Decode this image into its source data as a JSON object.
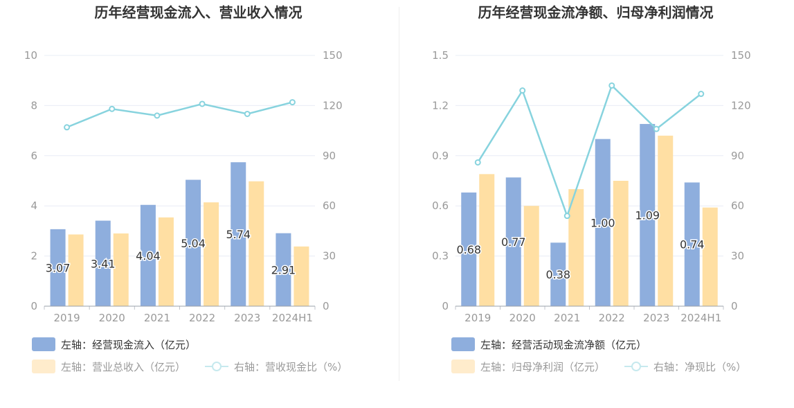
{
  "colors": {
    "bar_primary": "#8eaedd",
    "bar_secondary": "#ffdfa3",
    "line": "#87d3de",
    "axis_text": "#999999",
    "grid": "#e8ecf5",
    "legend_active_text": "#333333",
    "legend_inactive_text": "#999999"
  },
  "panels": [
    {
      "title": "历年经营现金流入、营业收入情况",
      "legend": {
        "bar1": "左轴：经营现金流入（亿元）",
        "bar2": "左轴：营业总收入（亿元）",
        "line": "右轴：营收现金比（%）"
      }
    },
    {
      "title": "历年经营现金流净额、归母净利润情况",
      "legend": {
        "bar1": "左轴：经营活动现金流净额（亿元）",
        "bar2": "左轴：归母净利润（亿元）",
        "line": "右轴：净现比（%）"
      }
    }
  ],
  "chart_data": [
    {
      "type": "bar",
      "title": "历年经营现金流入、营业收入情况",
      "categories": [
        "2019",
        "2020",
        "2021",
        "2022",
        "2023",
        "2024H1"
      ],
      "left_axis": {
        "ylim": [
          0,
          10
        ],
        "ticks": [
          "0",
          "2",
          "4",
          "6",
          "8",
          "10"
        ],
        "tick_values": [
          0,
          2,
          4,
          6,
          8,
          10
        ]
      },
      "right_axis": {
        "ylim": [
          0,
          150
        ],
        "ticks": [
          "0",
          "30",
          "60",
          "90",
          "120",
          "150"
        ],
        "tick_values": [
          0,
          30,
          60,
          90,
          120,
          150
        ]
      },
      "series": [
        {
          "name": "左轴：经营现金流入（亿元）",
          "type": "bar",
          "axis": "left",
          "values": [
            3.07,
            3.41,
            4.04,
            5.04,
            5.74,
            2.91
          ],
          "labels": [
            "3.07",
            "3.41",
            "4.04",
            "5.04",
            "5.74",
            "2.91"
          ]
        },
        {
          "name": "左轴：营业总收入（亿元）",
          "type": "bar",
          "axis": "left",
          "values": [
            2.86,
            2.9,
            3.54,
            4.14,
            4.98,
            2.38
          ]
        },
        {
          "name": "右轴：营收现金比（%）",
          "type": "line",
          "axis": "right",
          "values": [
            107,
            118,
            114,
            121,
            115,
            122
          ]
        }
      ],
      "grid": true,
      "legend_position": "bottom-left"
    },
    {
      "type": "bar",
      "title": "历年经营现金流净额、归母净利润情况",
      "categories": [
        "2019",
        "2020",
        "2021",
        "2022",
        "2023",
        "2024H1"
      ],
      "left_axis": {
        "ylim": [
          0,
          1.5
        ],
        "ticks": [
          "0",
          "0.3",
          "0.6",
          "0.9",
          "1.2",
          "1.5"
        ],
        "tick_values": [
          0,
          0.3,
          0.6,
          0.9,
          1.2,
          1.5
        ]
      },
      "right_axis": {
        "ylim": [
          0,
          150
        ],
        "ticks": [
          "0",
          "30",
          "60",
          "90",
          "120",
          "150"
        ],
        "tick_values": [
          0,
          30,
          60,
          90,
          120,
          150
        ]
      },
      "series": [
        {
          "name": "左轴：经营活动现金流净额（亿元）",
          "type": "bar",
          "axis": "left",
          "values": [
            0.68,
            0.77,
            0.38,
            1.0,
            1.09,
            0.74
          ],
          "labels": [
            "0.68",
            "0.77",
            "0.38",
            "1.00",
            "1.09",
            "0.74"
          ]
        },
        {
          "name": "左轴：归母净利润（亿元）",
          "type": "bar",
          "axis": "left",
          "values": [
            0.79,
            0.6,
            0.7,
            0.75,
            1.02,
            0.59
          ]
        },
        {
          "name": "右轴：净现比（%）",
          "type": "line",
          "axis": "right",
          "values": [
            86,
            129,
            54,
            132,
            106,
            127
          ]
        }
      ],
      "grid": true,
      "legend_position": "bottom-left"
    }
  ]
}
